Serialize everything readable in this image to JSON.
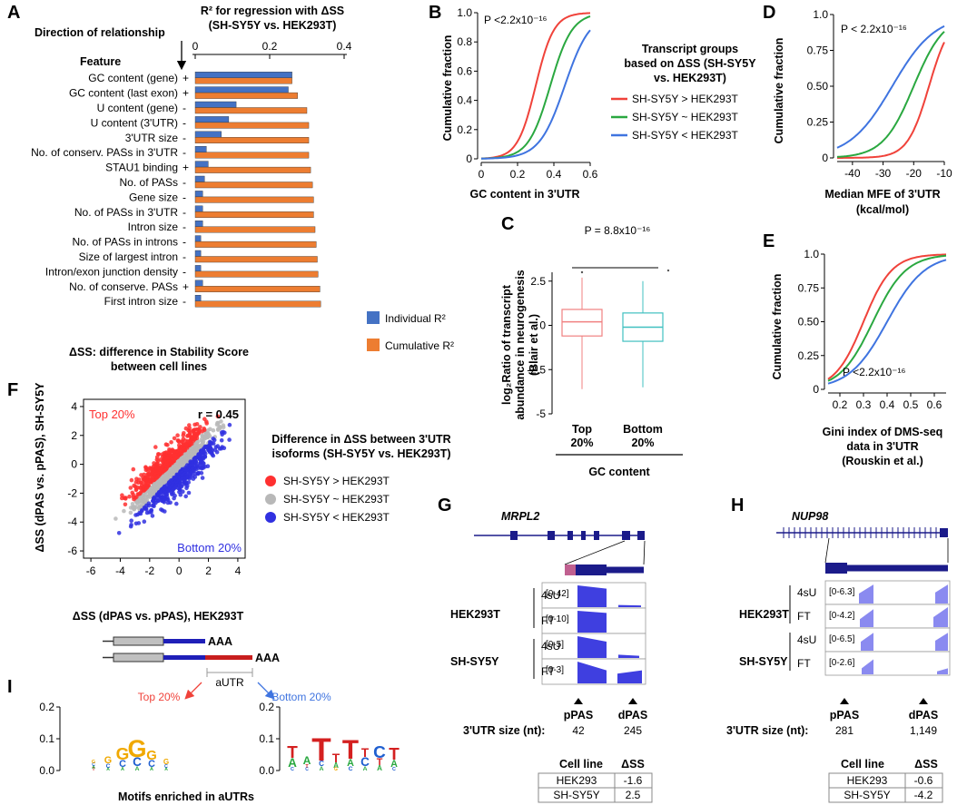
{
  "colors": {
    "up": "#f0423a",
    "same": "#2aa840",
    "down": "#3f74e0",
    "individual": "#4472c4",
    "cumulative": "#ed7d31",
    "navy": "#1b1b8a",
    "track": "#3f3fe0",
    "pale_track": "#8a8af0",
    "red_dot": "#ff3030",
    "grey_dot": "#b8b8b8",
    "blue_dot": "#3030e0",
    "box_red": "#f08080",
    "box_teal": "#40c0c0"
  },
  "panels": {
    "A": "A",
    "B": "B",
    "C": "C",
    "D": "D",
    "E": "E",
    "F": "F",
    "G": "G",
    "H": "H",
    "I": "I"
  },
  "panelA": {
    "title_line1": "R² for regression with ΔSS",
    "title_line2": "(SH-SY5Y vs. HEK293T)",
    "direction_label": "Direction of relationship",
    "feature_label": "Feature",
    "legend_individual": "Individual R²",
    "legend_cumulative": "Cumulative R²",
    "footnote_line1": "ΔSS: difference in Stability Score",
    "footnote_line2": "between cell lines"
  },
  "panelB": {
    "pval": "P <2.2x10⁻¹⁶",
    "ylabel": "Cumulative fraction",
    "xlabel": "GC content in 3'UTR"
  },
  "legendB": {
    "title_line1": "Transcript groups",
    "title_line2": "based on ΔSS (SH-SY5Y",
    "title_line3": "vs. HEK293T)",
    "items": [
      "SH-SY5Y > HEK293T",
      "SH-SY5Y ~ HEK293T",
      "SH-SY5Y < HEK293T"
    ]
  },
  "panelC": {
    "pval": "P = 8.8x10⁻¹⁶",
    "ylabel_line1": "log₂Ratio of transcript",
    "ylabel_line2": "abundance in neurogenesis",
    "ylabel_line3": "(Blair et al.)",
    "cat1_line1": "Top",
    "cat1_line2": "20%",
    "cat2_line1": "Bottom",
    "cat2_line2": "20%",
    "xlabel": "GC content"
  },
  "panelD": {
    "pval": "P < 2.2x10⁻¹⁶",
    "ylabel": "Cumulative fraction",
    "xlabel_line1": "Median MFE of 3'UTR",
    "xlabel_line2": "(kcal/mol)"
  },
  "panelE": {
    "pval": "P <2.2x10⁻¹⁶",
    "ylabel": "Cumulative fraction",
    "xlabel_line1": "Gini index of DMS-seq",
    "xlabel_line2": "data in 3'UTR",
    "xlabel_line3": "(Rouskin et al.)"
  },
  "panelF": {
    "r_label": "r = 0.45",
    "top_label": "Top 20%",
    "bottom_label": "Bottom 20%",
    "ylabel_line1": "ΔSS (dPAS vs. pPAS), SH-SY5Y",
    "xlabel": "ΔSS (dPAS vs. pPAS), HEK293T",
    "legend_title_line1": "Difference in ΔSS between 3'UTR",
    "legend_title_line2": "isoforms (SH-SY5Y vs. HEK293T)",
    "legend_items": [
      "SH-SY5Y > HEK293T",
      "SH-SY5Y ~ HEK293T",
      "SH-SY5Y < HEK293T"
    ]
  },
  "panelG": {
    "gene": "MRPL2",
    "cell1": "HEK293T",
    "cell2": "SH-SY5Y",
    "lib1": "4sU",
    "lib2": "FT",
    "ranges": [
      "[0-42]",
      "[0-10]",
      "[0-5]",
      "[0-3]"
    ],
    "p_label": "pPAS",
    "d_label": "dPAS",
    "size_label": "3'UTR size (nt):",
    "p_size": "42",
    "d_size": "245",
    "table_h1": "Cell line",
    "table_h2": "ΔSS",
    "rows": [
      [
        "HEK293",
        "-1.6"
      ],
      [
        "SH-SY5Y",
        "2.5"
      ]
    ]
  },
  "panelH": {
    "gene": "NUP98",
    "cell1": "HEK293T",
    "cell2": "SH-SY5Y",
    "lib1": "4sU",
    "lib2": "FT",
    "ranges": [
      "[0-6.3]",
      "[0-4.2]",
      "[0-6.5]",
      "[0-2.6]"
    ],
    "p_label": "pPAS",
    "d_label": "dPAS",
    "size_label": "3'UTR size (nt):",
    "p_size": "281",
    "d_size": "1,149",
    "table_h1": "Cell line",
    "table_h2": "ΔSS",
    "rows": [
      [
        "HEK293",
        "-0.6"
      ],
      [
        "SH-SY5Y",
        "-4.2"
      ]
    ]
  },
  "panelI": {
    "aaa": "AAA",
    "autr": "aUTR",
    "top_label": "Top 20%",
    "bottom_label": "Bottom 20%",
    "motif_caption": "Motifs enriched in aUTRs",
    "logo1_letters": "GGGCCG",
    "logo2_letters": "TATATCCT"
  },
  "chart_data": [
    {
      "id": "A",
      "type": "bar",
      "orientation": "horizontal",
      "title": "R² for regression with ΔSS (SH-SY5Y vs. HEK293T)",
      "xlim": [
        0,
        0.4
      ],
      "xticks": [
        "0",
        "0.2",
        "0.4"
      ],
      "categories": [
        "GC content (gene)",
        "GC content (last exon)",
        "U content (gene)",
        "U content (3'UTR)",
        "3'UTR size",
        "No. of conserv. PASs in 3'UTR",
        "STAU1 binding",
        "No. of  PASs",
        "Gene size",
        "No. of PASs in 3'UTR",
        "Intron size",
        "No. of PASs in introns",
        "Size of largest intron",
        "Intron/exon junction density",
        "No. of conserve. PASs",
        "First intron size"
      ],
      "directions": [
        "+",
        "+",
        "-",
        "-",
        "-",
        "-",
        "+",
        "-",
        "-",
        "-",
        "-",
        "-",
        "-",
        "-",
        "+",
        "-"
      ],
      "series": [
        {
          "name": "Individual R²",
          "values": [
            0.26,
            0.25,
            0.11,
            0.09,
            0.07,
            0.03,
            0.035,
            0.025,
            0.02,
            0.02,
            0.02,
            0.015,
            0.015,
            0.015,
            0.02,
            0.015
          ]
        },
        {
          "name": "Cumulative R²",
          "values": [
            0.26,
            0.275,
            0.3,
            0.305,
            0.305,
            0.305,
            0.31,
            0.315,
            0.318,
            0.318,
            0.322,
            0.325,
            0.328,
            0.33,
            0.335,
            0.337
          ]
        }
      ]
    },
    {
      "id": "B",
      "type": "line",
      "xlim": [
        0,
        0.6
      ],
      "ylim": [
        0,
        1
      ],
      "xticks": [
        "0",
        "0.2",
        "0.4",
        "0.6"
      ],
      "yticks": [
        "0",
        "0.2",
        "0.4",
        "0.6",
        "0.8",
        "1.0"
      ],
      "series": [
        {
          "name": "SH-SY5Y > HEK293T",
          "median": 0.3,
          "spread": 0.05
        },
        {
          "name": "SH-SY5Y ~ HEK293T",
          "median": 0.38,
          "spread": 0.06
        },
        {
          "name": "SH-SY5Y < HEK293T",
          "median": 0.46,
          "spread": 0.07
        }
      ]
    },
    {
      "id": "C",
      "type": "box",
      "ylim": [
        -5,
        3
      ],
      "yticks": [
        "-5",
        "-2.5",
        "0",
        "2.5"
      ],
      "categories": [
        "Top 20%",
        "Bottom 20%"
      ],
      "boxes": [
        {
          "q1": -0.6,
          "median": 0.2,
          "q3": 0.9,
          "lo": -3.6,
          "hi": 2.7,
          "outlier": 3.0
        },
        {
          "q1": -0.9,
          "median": -0.1,
          "q3": 0.7,
          "lo": -3.5,
          "hi": 2.5,
          "outlier": 3.1
        }
      ]
    },
    {
      "id": "D",
      "type": "line",
      "xlim": [
        -45,
        -10
      ],
      "ylim": [
        0,
        1
      ],
      "xticks": [
        "-40",
        "-30",
        "-20",
        "-10"
      ],
      "yticks": [
        "0",
        "0.25",
        "0.50",
        "0.75",
        "1.0"
      ],
      "series": [
        {
          "name": "SH-SY5Y > HEK293T",
          "median": -15,
          "spread": 3.5
        },
        {
          "name": "SH-SY5Y ~ HEK293T",
          "median": -20,
          "spread": 5
        },
        {
          "name": "SH-SY5Y < HEK293T",
          "median": -27,
          "spread": 7
        }
      ]
    },
    {
      "id": "E",
      "type": "line",
      "xlim": [
        0.15,
        0.65
      ],
      "ylim": [
        0,
        1
      ],
      "xticks": [
        "0.2",
        "0.3",
        "0.4",
        "0.5",
        "0.6"
      ],
      "yticks": [
        "0",
        "0.25",
        "0.50",
        "0.75",
        "1.0"
      ],
      "series": [
        {
          "name": "SH-SY5Y > HEK293T",
          "median": 0.3,
          "spread": 0.06
        },
        {
          "name": "SH-SY5Y ~ HEK293T",
          "median": 0.34,
          "spread": 0.07
        },
        {
          "name": "SH-SY5Y < HEK293T",
          "median": 0.4,
          "spread": 0.08
        }
      ]
    },
    {
      "id": "F",
      "type": "scatter",
      "xlim": [
        -6.5,
        4.5
      ],
      "ylim": [
        -6.5,
        4.5
      ],
      "xticks": [
        "-6",
        "-4",
        "-2",
        "0",
        "2",
        "4"
      ],
      "yticks": [
        "-6",
        "-4",
        "-2",
        "0",
        "2",
        "4"
      ],
      "r": 0.45
    }
  ]
}
